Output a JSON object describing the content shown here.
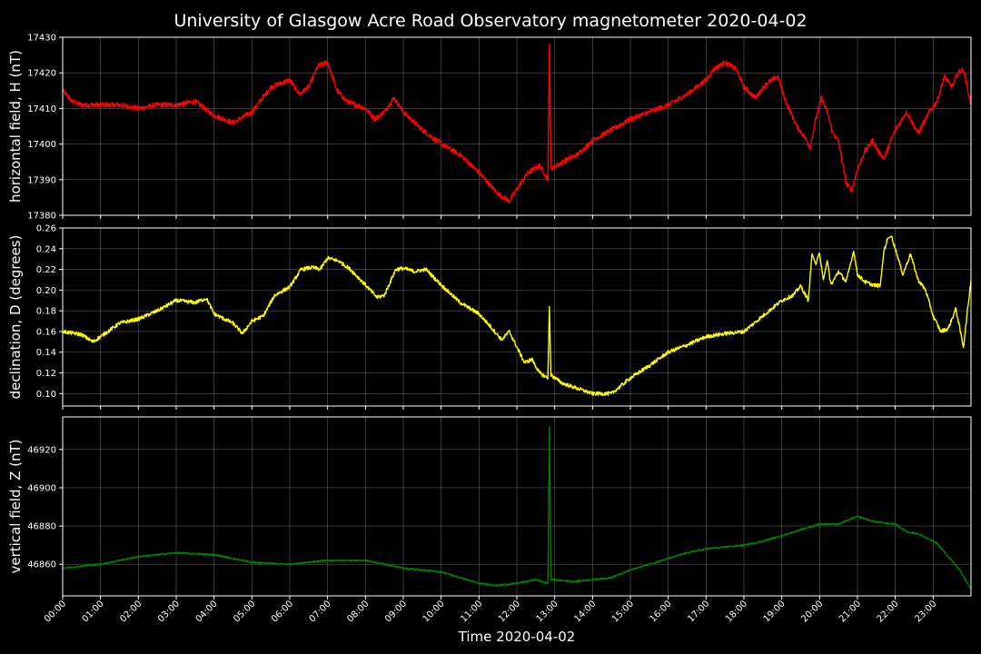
{
  "chart_data": {
    "type": "line",
    "title": "University of Glasgow Acre Road Observatory magnetometer 2020-04-02",
    "xlabel": "Time 2020-04-02",
    "x_ticks": [
      "00:00",
      "01:00",
      "02:00",
      "03:00",
      "04:00",
      "05:00",
      "06:00",
      "07:00",
      "08:00",
      "09:00",
      "10:00",
      "11:00",
      "12:00",
      "13:00",
      "14:00",
      "15:00",
      "16:00",
      "17:00",
      "18:00",
      "19:00",
      "20:00",
      "21:00",
      "22:00",
      "23:00"
    ],
    "xlim": [
      0,
      24
    ],
    "grid": true,
    "panels": [
      {
        "name": "H",
        "ylabel": "horizontal field, H (nT)",
        "color": "#ff0000",
        "ylim": [
          17380,
          17430
        ],
        "y_ticks": [
          17380,
          17390,
          17400,
          17410,
          17420,
          17430
        ],
        "tick_decimals": 0,
        "noise": 0.7,
        "x": [
          0,
          0.25,
          0.5,
          1,
          1.5,
          2,
          2.5,
          3,
          3.5,
          4,
          4.5,
          5,
          5.5,
          6,
          6.25,
          6.5,
          6.75,
          7,
          7.25,
          7.5,
          8,
          8.25,
          8.5,
          8.75,
          9,
          9.5,
          10,
          10.5,
          11,
          11.5,
          11.8,
          12.1,
          12.3,
          12.6,
          12.82,
          12.86,
          12.9,
          13.2,
          13.6,
          14,
          14.5,
          15,
          15.5,
          16,
          16.5,
          17,
          17.2,
          17.5,
          17.8,
          18,
          18.3,
          18.6,
          18.9,
          19.1,
          19.4,
          19.6,
          19.75,
          19.9,
          20.05,
          20.2,
          20.35,
          20.5,
          20.7,
          20.85,
          21,
          21.2,
          21.4,
          21.55,
          21.7,
          21.85,
          22,
          22.3,
          22.6,
          22.9,
          23.1,
          23.3,
          23.5,
          23.65,
          23.8,
          24
        ],
        "y": [
          17415,
          17412,
          17411,
          17411,
          17411,
          17410,
          17411,
          17411,
          17412,
          17408,
          17406,
          17409,
          17416,
          17418,
          17414,
          17416,
          17422,
          17423,
          17415,
          17412,
          17410,
          17407,
          17409,
          17413,
          17409,
          17404,
          17400,
          17397,
          17392,
          17386,
          17384,
          17389,
          17392,
          17394,
          17390,
          17428,
          17393,
          17395,
          17397,
          17401,
          17404,
          17407,
          17409,
          17411,
          17414,
          17418,
          17421,
          17423,
          17421,
          17416,
          17413,
          17417,
          17419,
          17412,
          17405,
          17402,
          17399,
          17407,
          17413,
          17409,
          17403,
          17401,
          17389,
          17387,
          17393,
          17398,
          17401,
          17398,
          17396,
          17400,
          17404,
          17409,
          17403,
          17409,
          17412,
          17419,
          17416,
          17420,
          17421,
          17411
        ]
      },
      {
        "name": "D",
        "ylabel": "declination, D (degrees)",
        "color": "#ffff00",
        "ylim": [
          0.088,
          0.26
        ],
        "y_ticks": [
          0.1,
          0.12,
          0.14,
          0.16,
          0.18,
          0.2,
          0.22,
          0.24,
          0.26
        ],
        "tick_decimals": 2,
        "noise": 0.0018,
        "x": [
          0,
          0.5,
          0.8,
          1,
          1.5,
          2,
          2.5,
          3,
          3.5,
          3.8,
          4,
          4.5,
          4.75,
          5,
          5.3,
          5.6,
          6,
          6.3,
          6.6,
          6.8,
          7,
          7.3,
          7.6,
          8,
          8.3,
          8.5,
          8.8,
          9,
          9.3,
          9.6,
          10,
          10.5,
          11,
          11.3,
          11.6,
          11.8,
          12,
          12.2,
          12.4,
          12.6,
          12.82,
          12.86,
          12.9,
          13.2,
          13.6,
          14,
          14.5,
          15,
          15.5,
          16,
          16.5,
          17,
          17.5,
          18,
          18.5,
          19,
          19.3,
          19.5,
          19.7,
          19.8,
          19.9,
          20,
          20.1,
          20.2,
          20.3,
          20.5,
          20.7,
          20.9,
          21,
          21.2,
          21.4,
          21.6,
          21.7,
          21.8,
          21.9,
          22,
          22.2,
          22.4,
          22.6,
          22.8,
          23,
          23.2,
          23.4,
          23.6,
          23.8,
          24
        ],
        "y": [
          0.16,
          0.157,
          0.15,
          0.155,
          0.168,
          0.172,
          0.18,
          0.19,
          0.188,
          0.192,
          0.177,
          0.168,
          0.158,
          0.17,
          0.175,
          0.195,
          0.203,
          0.22,
          0.222,
          0.22,
          0.231,
          0.228,
          0.22,
          0.205,
          0.193,
          0.195,
          0.22,
          0.221,
          0.218,
          0.22,
          0.205,
          0.188,
          0.177,
          0.165,
          0.152,
          0.16,
          0.145,
          0.13,
          0.133,
          0.12,
          0.115,
          0.184,
          0.118,
          0.11,
          0.105,
          0.1,
          0.1,
          0.115,
          0.127,
          0.14,
          0.147,
          0.155,
          0.158,
          0.16,
          0.175,
          0.19,
          0.195,
          0.204,
          0.19,
          0.235,
          0.225,
          0.236,
          0.21,
          0.228,
          0.205,
          0.218,
          0.208,
          0.238,
          0.215,
          0.208,
          0.205,
          0.204,
          0.238,
          0.25,
          0.252,
          0.24,
          0.215,
          0.235,
          0.21,
          0.2,
          0.175,
          0.16,
          0.163,
          0.182,
          0.145,
          0.21
        ]
      },
      {
        "name": "Z",
        "ylabel": "vertical field, Z (nT)",
        "color": "#008000",
        "ylim": [
          46843.5,
          46937
        ],
        "y_ticks": [
          46860,
          46880,
          46900,
          46920
        ],
        "tick_decimals": 0,
        "noise": 0.4,
        "x": [
          0,
          1,
          2,
          3,
          4,
          5,
          6,
          7,
          8,
          9,
          10,
          10.5,
          11,
          11.5,
          12,
          12.5,
          12.82,
          12.86,
          12.9,
          13.5,
          14,
          14.5,
          15,
          15.5,
          16,
          16.5,
          17,
          17.5,
          18,
          18.5,
          19,
          19.5,
          20,
          20.5,
          21,
          21.5,
          22,
          22.3,
          22.6,
          22.9,
          23.1,
          23.4,
          23.7,
          24
        ],
        "y": [
          46858,
          46860,
          46864,
          46866,
          46865,
          46861,
          46860,
          46862,
          46862,
          46858,
          46856,
          46853,
          46850,
          46849,
          46850,
          46852,
          46850,
          46932,
          46852,
          46851,
          46852,
          46853,
          46857,
          46860,
          46863,
          46866,
          46868,
          46869,
          46870,
          46872,
          46875,
          46878,
          46881,
          46881,
          46885,
          46882,
          46881,
          46877,
          46876,
          46873,
          46871,
          46864,
          46857,
          46847
        ]
      }
    ]
  }
}
